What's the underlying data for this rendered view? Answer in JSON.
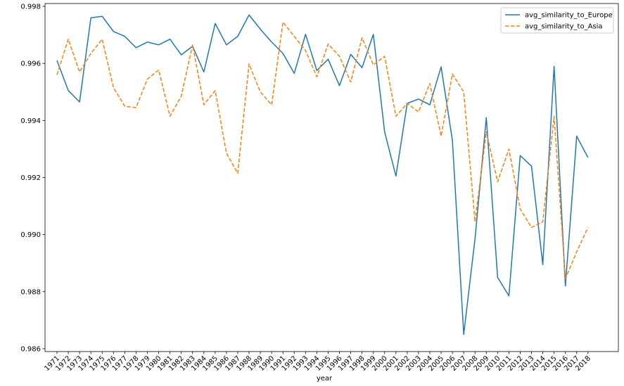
{
  "chart_data": {
    "type": "line",
    "title": "",
    "xlabel": "year",
    "ylabel": "",
    "ylim": [
      0.9859,
      0.9981
    ],
    "yticks": [
      0.986,
      0.988,
      0.99,
      0.992,
      0.994,
      0.996,
      0.998
    ],
    "ytick_labels": [
      "0.986",
      "0.988",
      "0.990",
      "0.992",
      "0.994",
      "0.996",
      "0.998"
    ],
    "x": [
      "1971",
      "1972",
      "1973",
      "1974",
      "1975",
      "1976",
      "1977",
      "1978",
      "1979",
      "1980",
      "1981",
      "1982",
      "1983",
      "1984",
      "1985",
      "1986",
      "1987",
      "1988",
      "1989",
      "1990",
      "1991",
      "1992",
      "1993",
      "1994",
      "1995",
      "1996",
      "1997",
      "1998",
      "1999",
      "2000",
      "2001",
      "2002",
      "2003",
      "2004",
      "2005",
      "2006",
      "2007",
      "2008",
      "2009",
      "2010",
      "2011",
      "2012",
      "2013",
      "2014",
      "2015",
      "2016",
      "2017",
      "2018"
    ],
    "legend_position": "top-right",
    "grid": false,
    "series": [
      {
        "name": "avg_similarity_to_Europe",
        "color": "#1f77b4",
        "style": "solid",
        "values": [
          0.9961,
          0.99505,
          0.99465,
          0.9976,
          0.99765,
          0.99712,
          0.99695,
          0.99655,
          0.99675,
          0.99665,
          0.99685,
          0.9963,
          0.9966,
          0.9957,
          0.9974,
          0.99665,
          0.99695,
          0.9977,
          0.9972,
          0.99675,
          0.99635,
          0.99565,
          0.99702,
          0.99575,
          0.99615,
          0.99522,
          0.99632,
          0.99585,
          0.99702,
          0.9936,
          0.99205,
          0.9946,
          0.99475,
          0.99455,
          0.99588,
          0.9933,
          0.9865,
          0.98985,
          0.9941,
          0.9885,
          0.98785,
          0.99277,
          0.9924,
          0.98895,
          0.9959,
          0.9882,
          0.99345,
          0.9927
        ]
      },
      {
        "name": "avg_similarity_to_Asia",
        "color": "#ff7f0e",
        "style": "dashed",
        "values": [
          0.9956,
          0.99685,
          0.9957,
          0.99635,
          0.99685,
          0.99515,
          0.9945,
          0.99445,
          0.99545,
          0.99577,
          0.99415,
          0.99485,
          0.99665,
          0.99455,
          0.99505,
          0.99285,
          0.99215,
          0.99598,
          0.995,
          0.99455,
          0.99745,
          0.99695,
          0.99645,
          0.99553,
          0.99668,
          0.99625,
          0.99535,
          0.9969,
          0.99595,
          0.99625,
          0.99415,
          0.9946,
          0.9943,
          0.9953,
          0.99345,
          0.99563,
          0.995,
          0.99045,
          0.9936,
          0.99185,
          0.993,
          0.9909,
          0.99025,
          0.99045,
          0.99415,
          0.98845,
          0.9894,
          0.99025
        ]
      }
    ]
  }
}
